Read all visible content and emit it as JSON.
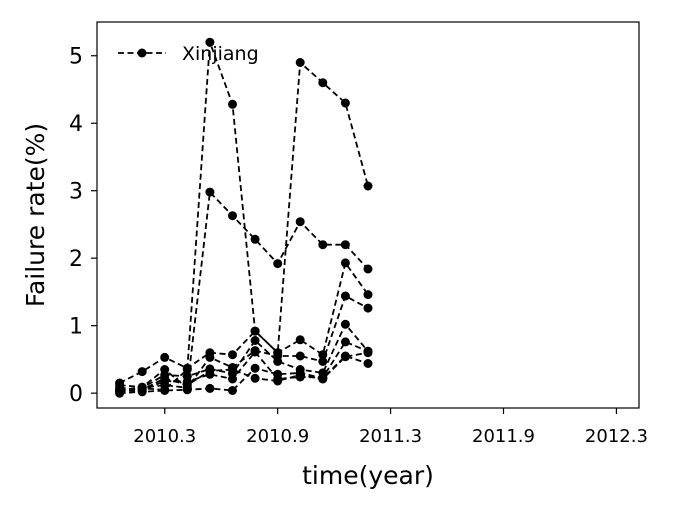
{
  "chart_data": {
    "type": "line",
    "title": "",
    "xlabel": "time(year)",
    "ylabel": "Failure rate(%)",
    "xlim": [
      2009.95,
      2012.35
    ],
    "ylim": [
      -0.22,
      5.5
    ],
    "x_ticks": [
      {
        "value": 2010.25,
        "label": "2010.3"
      },
      {
        "value": 2010.75,
        "label": "2010.9"
      },
      {
        "value": 2011.25,
        "label": "2011.3"
      },
      {
        "value": 2011.75,
        "label": "2011.9"
      },
      {
        "value": 2012.25,
        "label": "2012.3"
      }
    ],
    "y_ticks": [
      {
        "value": 0,
        "label": "0"
      },
      {
        "value": 1,
        "label": "1"
      },
      {
        "value": 2,
        "label": "2"
      },
      {
        "value": 3,
        "label": "3"
      },
      {
        "value": 4,
        "label": "4"
      },
      {
        "value": 5,
        "label": "5"
      }
    ],
    "x": [
      2010.05,
      2010.15,
      2010.25,
      2010.35,
      2010.45,
      2010.55,
      2010.65,
      2010.75,
      2010.85,
      2010.95,
      2011.05,
      2011.15
    ],
    "series": [
      {
        "name": "Xinjiang",
        "values": [
          0.03,
          0.07,
          0.05,
          0.35,
          5.2,
          4.28,
          0.92,
          0.6,
          4.9,
          4.6,
          4.3,
          3.07
        ]
      },
      {
        "values": [
          0.05,
          0.08,
          0.12,
          0.08,
          2.98,
          2.63,
          2.28,
          1.92,
          2.54,
          2.2,
          2.2,
          1.84
        ]
      },
      {
        "values": [
          0.15,
          0.32,
          0.53,
          0.37,
          0.6,
          0.57,
          0.92,
          0.6,
          0.79,
          0.57,
          1.93,
          1.46
        ]
      },
      {
        "values": [
          0.12,
          0.09,
          0.35,
          0.08,
          0.53,
          0.38,
          0.63,
          0.55,
          0.55,
          0.47,
          1.44,
          1.26
        ]
      },
      {
        "values": [
          0.05,
          0.08,
          0.27,
          0.25,
          0.36,
          0.29,
          0.78,
          0.47,
          0.35,
          0.3,
          1.02,
          0.62
        ]
      },
      {
        "values": [
          0.03,
          0.04,
          0.18,
          0.17,
          0.28,
          0.21,
          0.61,
          0.21,
          0.24,
          0.23,
          0.76,
          0.62
        ]
      },
      {
        "values": [
          0.0,
          0.02,
          0.04,
          0.05,
          0.07,
          0.04,
          0.37,
          0.28,
          0.3,
          0.22,
          0.55,
          0.44
        ]
      },
      {
        "values": [
          0.08,
          0.05,
          0.22,
          0.12,
          0.33,
          0.35,
          0.22,
          0.18,
          0.27,
          0.21,
          0.54,
          0.6
        ]
      }
    ],
    "legend": {
      "entries": [
        "Xinjiang"
      ],
      "placement": "top-left"
    },
    "grid": false,
    "line_style": "dashed",
    "marker": "circle",
    "color": "#000000"
  }
}
